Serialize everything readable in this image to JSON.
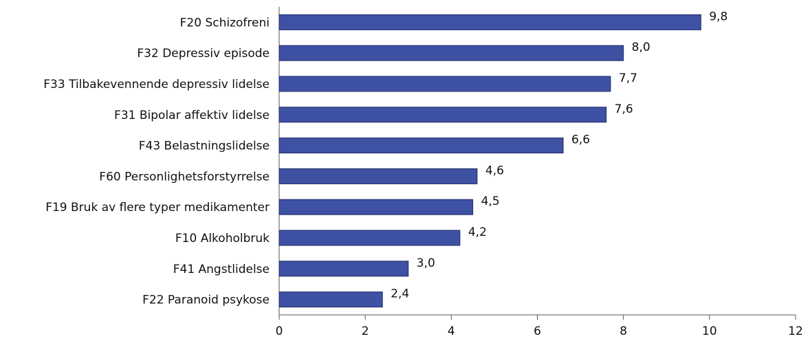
{
  "chart_data": {
    "type": "barh",
    "categories": [
      "F20 Schizofreni",
      "F32 Depressiv episode",
      "F33 Tilbakevennende depressiv lidelse",
      "F31 Bipolar affektiv lidelse",
      "F43 Belastningslidelse",
      "F60 Personlighetsforstyrrelse",
      "F19 Bruk av flere typer medikamenter",
      "F10 Alkoholbruk",
      "F41 Angstlidelse",
      "F22 Paranoid psykose"
    ],
    "values": [
      9.8,
      8.0,
      7.7,
      7.6,
      6.6,
      4.6,
      4.5,
      4.2,
      3.0,
      2.4
    ],
    "value_labels": [
      "9,8",
      "8,0",
      "7,7",
      "7,6",
      "6,6",
      "4,6",
      "4,5",
      "4,2",
      "3,0",
      "2,4"
    ],
    "color": "#3f51a3",
    "xlim": [
      0,
      12
    ],
    "xticks": [
      0,
      2,
      4,
      6,
      8,
      10,
      12
    ]
  }
}
